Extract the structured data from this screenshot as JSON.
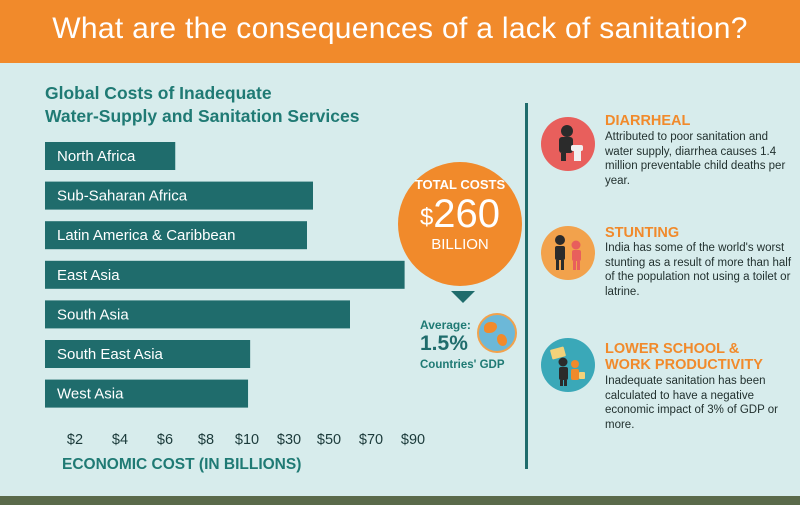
{
  "header": {
    "title": "What are the consequences of a lack of sanitation?"
  },
  "chart_data": {
    "type": "bar",
    "orientation": "horizontal",
    "title": "Global Costs of Inadequate Water-Supply and Sanitation Services",
    "title_lines": [
      "Global Costs of Inadequate",
      "Water-Supply and Sanitation Services"
    ],
    "categories": [
      "North Africa",
      "Sub-Saharan Africa",
      "Latin America & Caribbean",
      "East Asia",
      "South Asia",
      "South East Asia",
      "West Asia"
    ],
    "values": [
      6.5,
      42,
      39,
      86,
      60,
      11.5,
      10.5
    ],
    "x_ticks": [
      2,
      4,
      6,
      8,
      10,
      30,
      50,
      70,
      90
    ],
    "x_tick_labels": [
      "$2",
      "$4",
      "$6",
      "$8",
      "$10",
      "$30",
      "$50",
      "$70",
      "$90"
    ],
    "xlabel": "ECONOMIC COST (IN BILLIONS)",
    "bar_color": "#1f6c6c",
    "grid": false
  },
  "total": {
    "line1": "TOTAL COSTS",
    "currency": "$",
    "amount": "260",
    "unit": "BILLION",
    "color": "#f18a2b"
  },
  "average": {
    "label": "Average:",
    "value": "1.5%",
    "footnote": "Countries' GDP"
  },
  "sections": [
    {
      "title": "DIARRHEAL",
      "text": "Attributed to poor sanitation and water supply, diarrhea causes 1.4 million preventable child deaths per year.",
      "icon": "toilet-person-icon",
      "icon_color": "#e85f5c"
    },
    {
      "title": "STUNTING",
      "text": "India has some of the world's worst stunting as a result of more than half of the population not using a toilet or latrine.",
      "icon": "children-height-icon",
      "icon_color": "#f2a24c"
    },
    {
      "title": "LOWER SCHOOL & WORK PRODUCTIVITY",
      "title_lines": [
        "LOWER SCHOOL &",
        "WORK PRODUCTIVITY"
      ],
      "text": "Inadequate sanitation has been calculated to have a negative economic impact of 3% of GDP or more.",
      "icon": "school-work-icon",
      "icon_color": "#3aa8b8"
    }
  ]
}
